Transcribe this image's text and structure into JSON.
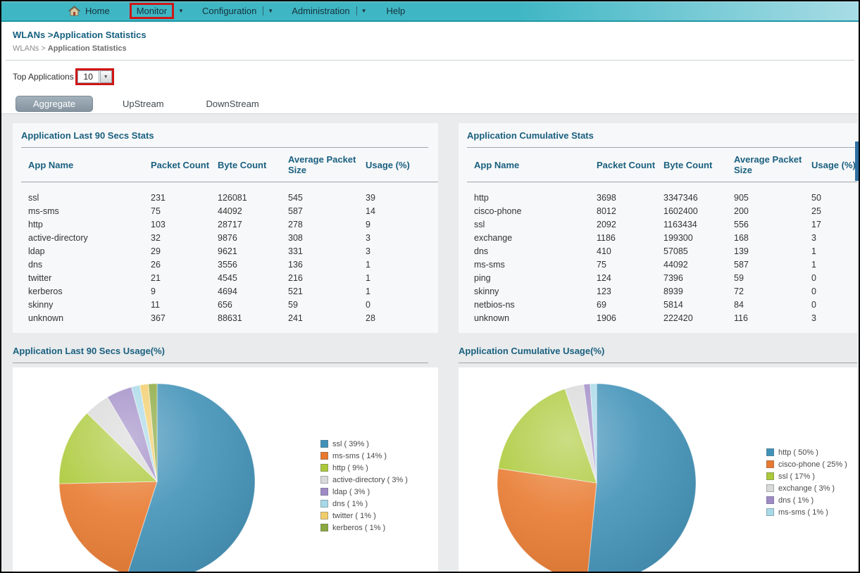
{
  "navbar": {
    "items": [
      {
        "label": "Home"
      },
      {
        "label": "Monitor"
      },
      {
        "label": "Configuration"
      },
      {
        "label": "Administration"
      },
      {
        "label": "Help"
      }
    ]
  },
  "page": {
    "title": "WLANs >Application Statistics",
    "breadcrumb_prefix": "WLANs >",
    "breadcrumb_current": "Application Statistics",
    "top_applications_label": "Top Applications",
    "top_applications_value": "10"
  },
  "tabs": [
    {
      "label": "Aggregate",
      "selected": true
    },
    {
      "label": "UpStream",
      "selected": false
    },
    {
      "label": "DownStream",
      "selected": false
    }
  ],
  "tables": [
    {
      "title": "Application Last 90 Secs Stats",
      "columns": [
        "App Name",
        "Packet Count",
        "Byte Count",
        "Average Packet Size",
        "Usage (%)"
      ],
      "rows": [
        [
          "ssl",
          "231",
          "126081",
          "545",
          "39"
        ],
        [
          "ms-sms",
          "75",
          "44092",
          "587",
          "14"
        ],
        [
          "http",
          "103",
          "28717",
          "278",
          "9"
        ],
        [
          "active-directory",
          "32",
          "9876",
          "308",
          "3"
        ],
        [
          "ldap",
          "29",
          "9621",
          "331",
          "3"
        ],
        [
          "dns",
          "26",
          "3556",
          "136",
          "1"
        ],
        [
          "twitter",
          "21",
          "4545",
          "216",
          "1"
        ],
        [
          "kerberos",
          "9",
          "4694",
          "521",
          "1"
        ],
        [
          "skinny",
          "11",
          "656",
          "59",
          "0"
        ],
        [
          "unknown",
          "367",
          "88631",
          "241",
          "28"
        ]
      ]
    },
    {
      "title": "Application Cumulative Stats",
      "columns": [
        "App Name",
        "Packet Count",
        "Byte Count",
        "Average Packet Size",
        "Usage (%)"
      ],
      "rows": [
        [
          "http",
          "3698",
          "3347346",
          "905",
          "50"
        ],
        [
          "cisco-phone",
          "8012",
          "1602400",
          "200",
          "25"
        ],
        [
          "ssl",
          "2092",
          "1163434",
          "556",
          "17"
        ],
        [
          "exchange",
          "1186",
          "199300",
          "168",
          "3"
        ],
        [
          "dns",
          "410",
          "57085",
          "139",
          "1"
        ],
        [
          "ms-sms",
          "75",
          "44092",
          "587",
          "1"
        ],
        [
          "ping",
          "124",
          "7396",
          "59",
          "0"
        ],
        [
          "skinny",
          "123",
          "8939",
          "72",
          "0"
        ],
        [
          "netbios-ns",
          "69",
          "5814",
          "84",
          "0"
        ],
        [
          "unknown",
          "1906",
          "222420",
          "116",
          "3"
        ]
      ]
    }
  ],
  "chart_data": [
    {
      "type": "pie",
      "title": "Application Last 90 Secs Usage(%)",
      "labels": [
        "ssl",
        "ms-sms",
        "http",
        "active-directory",
        "ldap",
        "dns",
        "twitter",
        "kerberos"
      ],
      "values": [
        39,
        14,
        9,
        3,
        3,
        1,
        1,
        1
      ],
      "colors": [
        "#4192b8",
        "#e8792e",
        "#abc938",
        "#d9d9d9",
        "#9e8ac5",
        "#a8d9e8",
        "#f1cd6a",
        "#8aa83d"
      ],
      "legend_position": "right",
      "start_angle_deg": -90,
      "direction": "clockwise"
    },
    {
      "type": "pie",
      "title": "Application Cumulative Usage(%)",
      "labels": [
        "http",
        "cisco-phone",
        "ssl",
        "exchange",
        "dns",
        "ms-sms"
      ],
      "values": [
        50,
        25,
        17,
        3,
        1,
        1
      ],
      "colors": [
        "#4192b8",
        "#e8792e",
        "#abc938",
        "#d9d9d9",
        "#9e8ac5",
        "#a8d9e8"
      ],
      "legend_position": "right",
      "start_angle_deg": -90,
      "direction": "clockwise"
    }
  ],
  "colors": {
    "navbar_teal": "#3fb6c4",
    "annotation_red": "#cf1616",
    "heading_teal": "#1a6080",
    "tab_selected_gray": "#8f9ea9"
  }
}
